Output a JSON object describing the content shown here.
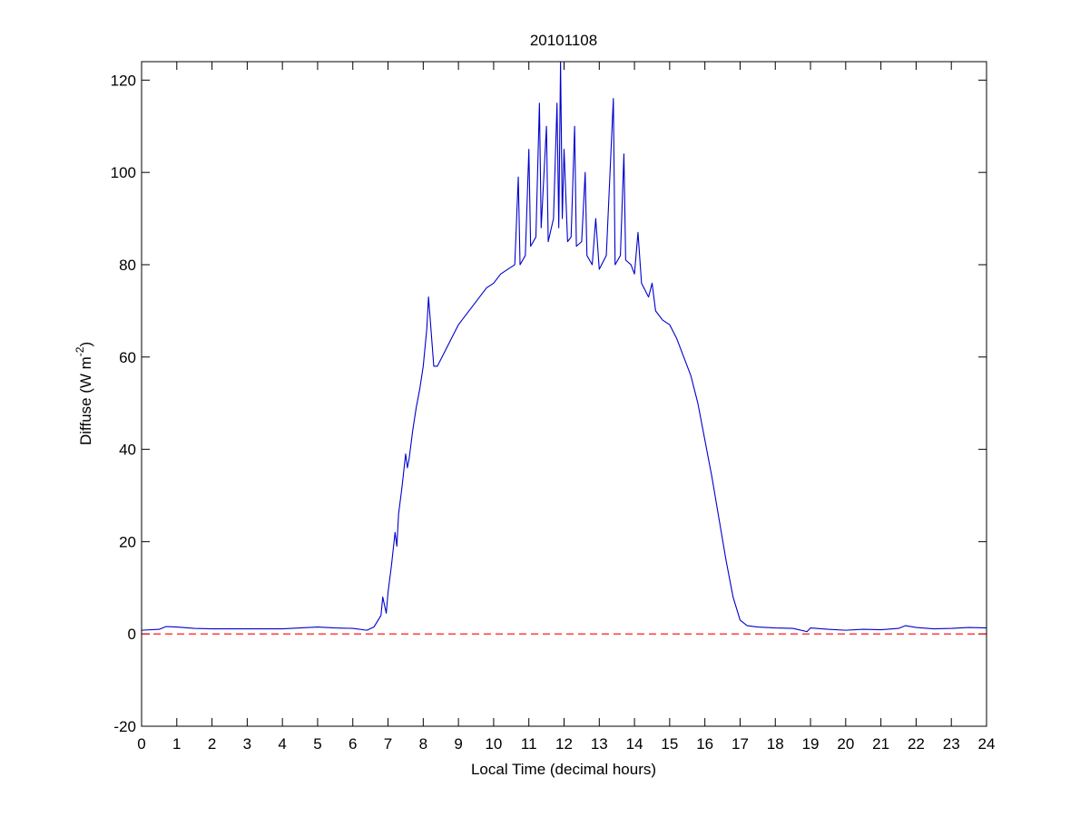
{
  "chart_data": {
    "type": "line",
    "title": "20101108",
    "xlabel": "Local Time (decimal hours)",
    "ylabel": [
      "Diffuse (W m",
      "-2",
      ")"
    ],
    "x": [
      0,
      0.5,
      0.7,
      1,
      1.5,
      2,
      3,
      4,
      4.5,
      5,
      5.5,
      6,
      6.4,
      6.6,
      6.8,
      6.85,
      6.95,
      7.0,
      7.1,
      7.2,
      7.25,
      7.3,
      7.4,
      7.5,
      7.55,
      7.6,
      7.7,
      7.8,
      7.9,
      8.0,
      8.1,
      8.15,
      8.2,
      8.3,
      8.4,
      8.6,
      8.8,
      9.0,
      9.2,
      9.4,
      9.6,
      9.8,
      10.0,
      10.2,
      10.4,
      10.6,
      10.7,
      10.75,
      10.9,
      11.0,
      11.05,
      11.2,
      11.3,
      11.35,
      11.5,
      11.55,
      11.7,
      11.8,
      11.85,
      11.9,
      11.95,
      12.0,
      12.1,
      12.2,
      12.3,
      12.35,
      12.5,
      12.6,
      12.65,
      12.8,
      12.9,
      13.0,
      13.2,
      13.4,
      13.45,
      13.6,
      13.7,
      13.75,
      13.9,
      14.0,
      14.1,
      14.2,
      14.4,
      14.5,
      14.6,
      14.8,
      15.0,
      15.2,
      15.4,
      15.6,
      15.8,
      16.0,
      16.2,
      16.4,
      16.6,
      16.8,
      17.0,
      17.2,
      17.5,
      18,
      18.5,
      18.9,
      19,
      19.5,
      20,
      20.5,
      21,
      21.5,
      21.7,
      22,
      22.5,
      23,
      23.5,
      24
    ],
    "series": [
      {
        "color": "#0000cc",
        "values": [
          0.8,
          1.0,
          1.6,
          1.5,
          1.2,
          1.1,
          1.1,
          1.1,
          1.3,
          1.5,
          1.3,
          1.2,
          0.8,
          1.5,
          4,
          8,
          4.5,
          9,
          15,
          22,
          19,
          26,
          32,
          39,
          36,
          38,
          44,
          49,
          53,
          58,
          66,
          73,
          68,
          58,
          58,
          61,
          64,
          67,
          69,
          71,
          73,
          75,
          76,
          78,
          79,
          80,
          99,
          80,
          82,
          105,
          84,
          86,
          115,
          88,
          110,
          85,
          90,
          115,
          88,
          124,
          90,
          105,
          85,
          86,
          110,
          84,
          85,
          100,
          82,
          80,
          90,
          79,
          82,
          116,
          80,
          82,
          104,
          81,
          80,
          78,
          87,
          76,
          73,
          76,
          70,
          68,
          67,
          64,
          60,
          56,
          50,
          42,
          34,
          25,
          16,
          8,
          3,
          1.8,
          1.5,
          1.3,
          1.2,
          0.5,
          1.3,
          1.0,
          0.8,
          1.0,
          0.9,
          1.2,
          1.8,
          1.4,
          1.1,
          1.2,
          1.4,
          1.3
        ]
      }
    ],
    "hline": {
      "value": 0,
      "color": "#ff0000",
      "dashed": true
    },
    "xlim": [
      0,
      24
    ],
    "xticks": [
      0,
      1,
      2,
      3,
      4,
      5,
      6,
      7,
      8,
      9,
      10,
      11,
      12,
      13,
      14,
      15,
      16,
      17,
      18,
      19,
      20,
      21,
      22,
      23,
      24
    ],
    "ylim": [
      -20,
      124
    ],
    "yticks": [
      -20,
      0,
      20,
      40,
      60,
      80,
      100,
      120
    ],
    "grid": false
  }
}
